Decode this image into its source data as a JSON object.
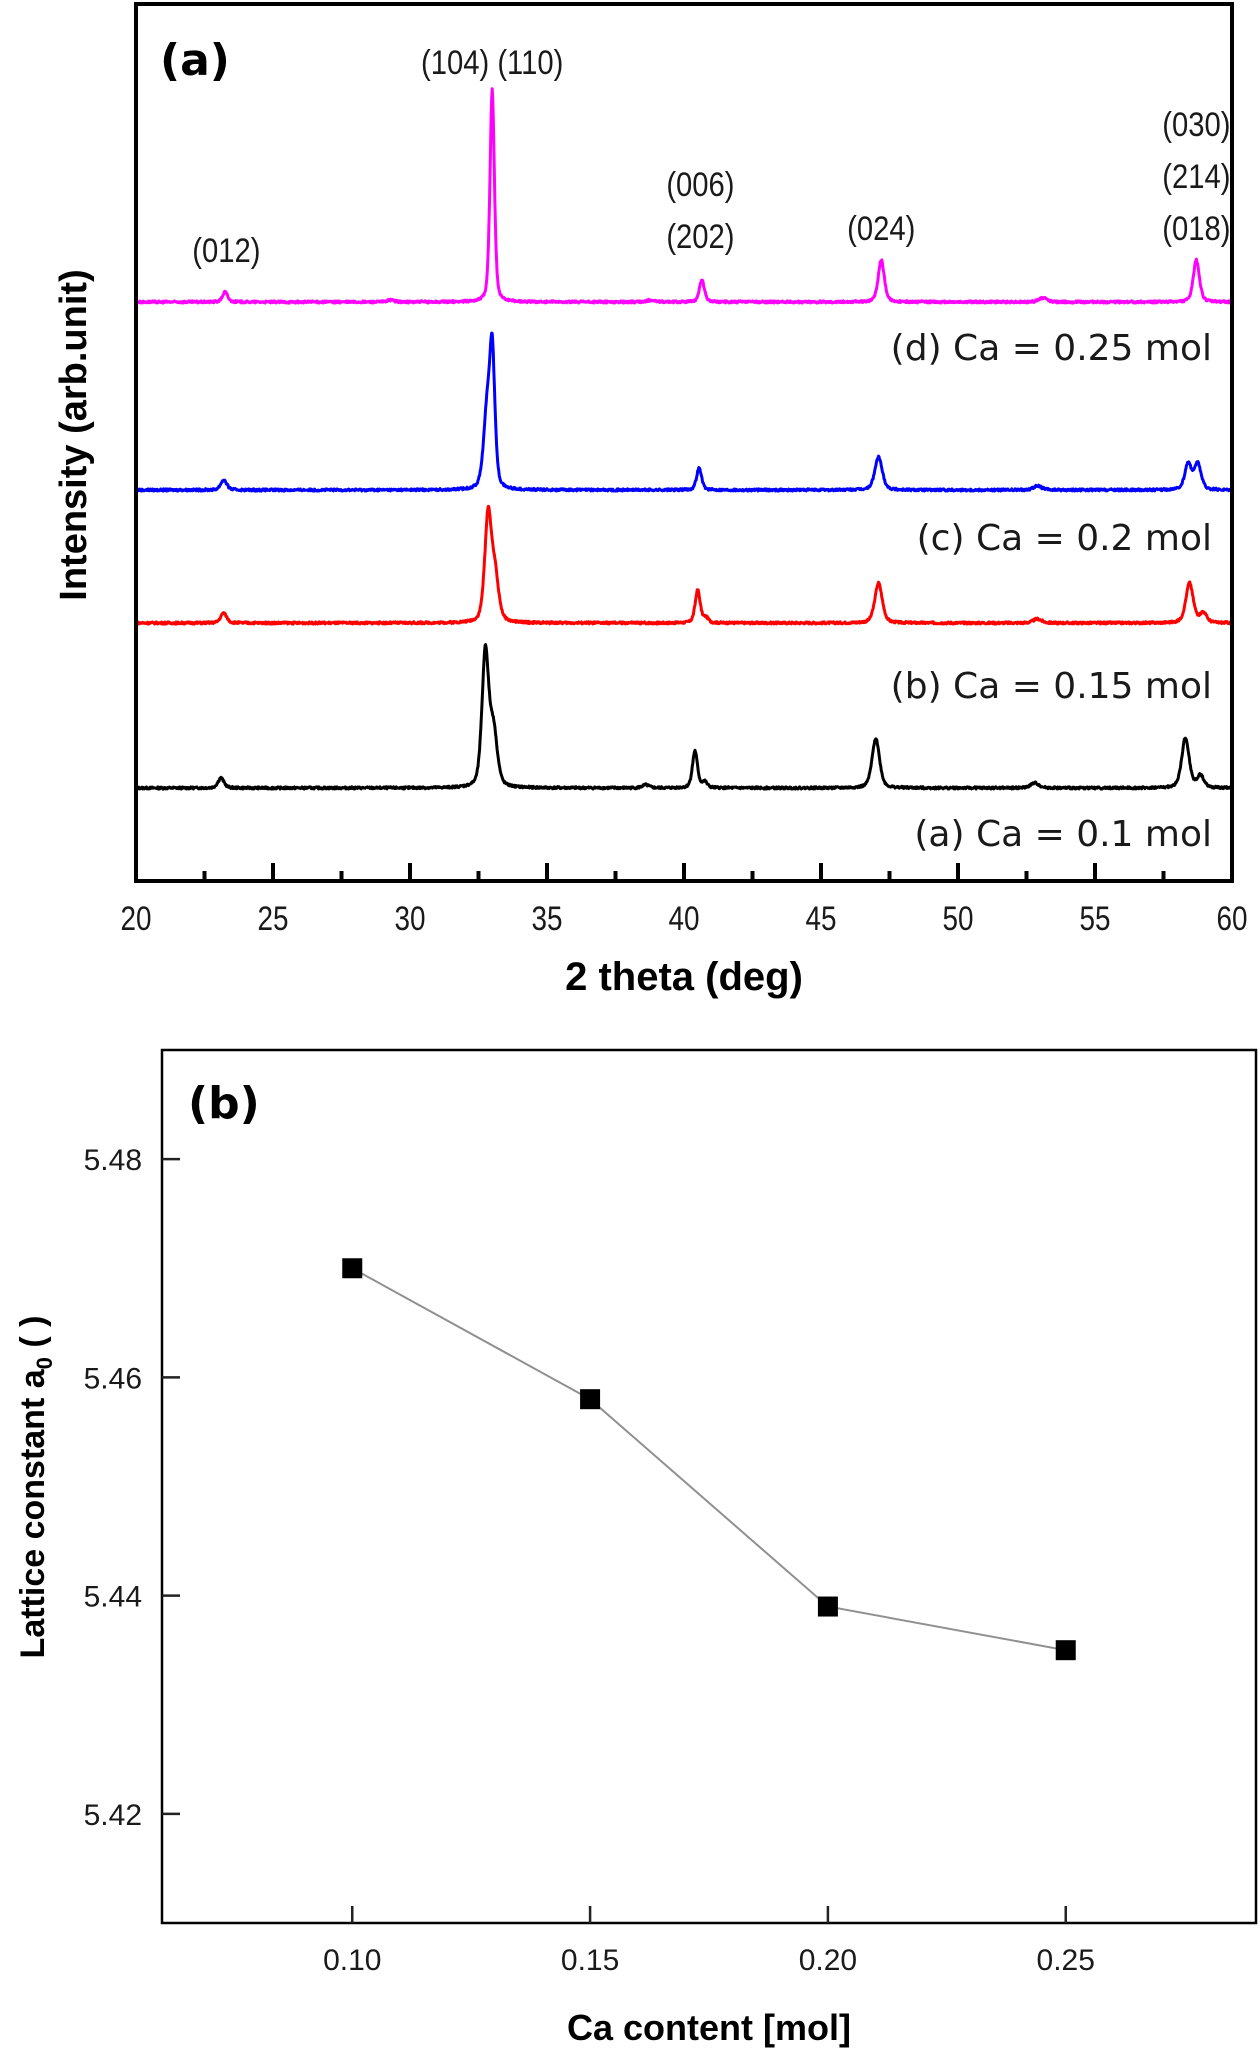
{
  "chart_data": [
    {
      "type": "line",
      "panel_label": "(a)",
      "xlabel": "2 theta (deg)",
      "ylabel": "Intensity (arb.unit)",
      "xlim": [
        20,
        60
      ],
      "ylim": [
        -93,
        784
      ],
      "xticks": [
        20,
        25,
        30,
        35,
        40,
        45,
        50,
        55,
        60
      ],
      "x_minor_ticks": [
        22.5,
        27.5,
        32.5,
        37.5,
        42.5,
        47.5,
        52.5,
        57.5
      ],
      "grid": false,
      "peak_annotations": [
        {
          "text": [
            "(012)"
          ],
          "x": 23.3
        },
        {
          "text": [
            "(104) (110)"
          ],
          "x": 33.0
        },
        {
          "text": [
            "(006)",
            "(202)"
          ],
          "x": 40.6
        },
        {
          "text": [
            "(024)"
          ],
          "x": 47.2
        },
        {
          "text": [
            "(030)",
            "(214)",
            "(018)"
          ],
          "x": 58.7
        }
      ],
      "series": [
        {
          "name": "(a) Ca = 0.1 mol",
          "color": "#000000",
          "offset": 0,
          "peaks": [
            {
              "x": 23.1,
              "intensity": 10,
              "width": 0.18
            },
            {
              "x": 32.75,
              "intensity": 135,
              "width": 0.2
            },
            {
              "x": 33.05,
              "intensity": 55,
              "width": 0.22
            },
            {
              "x": 38.6,
              "intensity": 3,
              "width": 0.2
            },
            {
              "x": 40.4,
              "intensity": 37,
              "width": 0.15
            },
            {
              "x": 40.75,
              "intensity": 6,
              "width": 0.15
            },
            {
              "x": 47.0,
              "intensity": 50,
              "width": 0.22
            },
            {
              "x": 52.8,
              "intensity": 5,
              "width": 0.25
            },
            {
              "x": 58.3,
              "intensity": 50,
              "width": 0.22
            },
            {
              "x": 58.85,
              "intensity": 12,
              "width": 0.2
            }
          ]
        },
        {
          "name": "(b) Ca = 0.15 mol",
          "color": "#ff0000",
          "offset": 165,
          "peaks": [
            {
              "x": 23.2,
              "intensity": 10,
              "width": 0.18
            },
            {
              "x": 32.85,
              "intensity": 105,
              "width": 0.2
            },
            {
              "x": 33.1,
              "intensity": 45,
              "width": 0.22
            },
            {
              "x": 40.5,
              "intensity": 33,
              "width": 0.15
            },
            {
              "x": 40.8,
              "intensity": 5,
              "width": 0.15
            },
            {
              "x": 47.1,
              "intensity": 40,
              "width": 0.22
            },
            {
              "x": 52.9,
              "intensity": 4,
              "width": 0.25
            },
            {
              "x": 58.45,
              "intensity": 40,
              "width": 0.22
            },
            {
              "x": 58.95,
              "intensity": 10,
              "width": 0.2
            }
          ]
        },
        {
          "name": "(c) Ca = 0.2 mol",
          "color": "#0000ff",
          "offset": 298,
          "peaks": [
            {
              "x": 23.2,
              "intensity": 10,
              "width": 0.18
            },
            {
              "x": 32.8,
              "intensity": 70,
              "width": 0.2
            },
            {
              "x": 33.0,
              "intensity": 135,
              "width": 0.16
            },
            {
              "x": 40.55,
              "intensity": 22,
              "width": 0.15
            },
            {
              "x": 47.1,
              "intensity": 33,
              "width": 0.22
            },
            {
              "x": 52.9,
              "intensity": 4,
              "width": 0.25
            },
            {
              "x": 58.4,
              "intensity": 26,
              "width": 0.2
            },
            {
              "x": 58.75,
              "intensity": 26,
              "width": 0.2
            }
          ]
        },
        {
          "name": "(d) Ca = 0.25 mol",
          "color": "#ff00ff",
          "offset": 486,
          "peaks": [
            {
              "x": 23.25,
              "intensity": 10,
              "width": 0.15
            },
            {
              "x": 29.3,
              "intensity": 2,
              "width": 0.2
            },
            {
              "x": 33.0,
              "intensity": 213,
              "width": 0.13
            },
            {
              "x": 38.8,
              "intensity": 2,
              "width": 0.2
            },
            {
              "x": 40.65,
              "intensity": 22,
              "width": 0.15
            },
            {
              "x": 47.2,
              "intensity": 42,
              "width": 0.18
            },
            {
              "x": 53.1,
              "intensity": 4,
              "width": 0.25
            },
            {
              "x": 58.7,
              "intensity": 42,
              "width": 0.18
            }
          ]
        }
      ]
    },
    {
      "type": "line",
      "panel_label": "(b)",
      "xlabel": "Ca content [mol]",
      "ylabel_main": "Lattice constant a",
      "ylabel_sub": "0",
      "ylabel_unit": " (  )",
      "xlim": [
        0.06,
        0.29
      ],
      "ylim": [
        5.41,
        5.49
      ],
      "xticks": [
        "0.10",
        "0.15",
        "0.20",
        "0.25"
      ],
      "yticks": [
        "5.42",
        "5.44",
        "5.46",
        "5.48"
      ],
      "grid": false,
      "marker": "square",
      "line_color": "#909090",
      "marker_color": "#000000",
      "x": [
        0.1,
        0.15,
        0.2,
        0.25
      ],
      "y": [
        5.47,
        5.458,
        5.439,
        5.435
      ]
    }
  ]
}
